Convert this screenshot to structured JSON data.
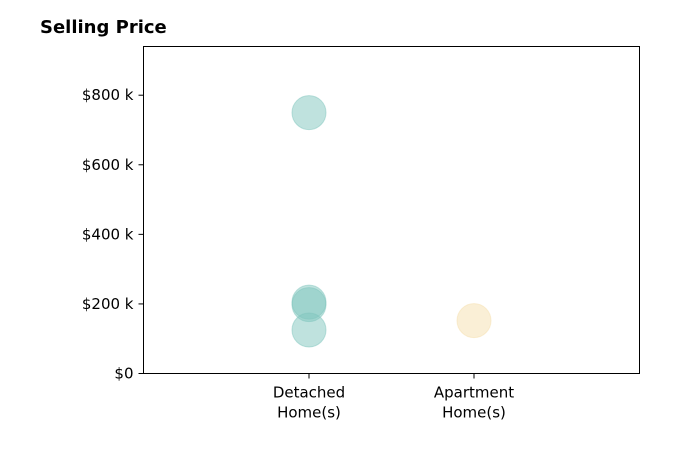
{
  "colors": {
    "detached": "#80c6bd",
    "apartment": "#f5dfae",
    "axis": "#000000",
    "background": "#ffffff"
  },
  "chart_data": {
    "type": "scatter",
    "title": "Selling Price",
    "xlabel": "",
    "ylabel": "",
    "categories": [
      [
        "Detached",
        "Home(s)"
      ],
      [
        "Apartment",
        "Home(s)"
      ]
    ],
    "y_ticks": [
      0,
      200000,
      400000,
      600000,
      800000
    ],
    "y_tick_labels": [
      "$0",
      "$200 k",
      "$400 k",
      "$600 k",
      "$800 k"
    ],
    "ylim": [
      0,
      940000
    ],
    "grid": false,
    "legend": "none",
    "points": [
      {
        "category": 0,
        "value": 750000
      },
      {
        "category": 0,
        "value": 205000
      },
      {
        "category": 0,
        "value": 198000
      },
      {
        "category": 0,
        "value": 125000
      },
      {
        "category": 1,
        "value": 152000
      }
    ],
    "point_alpha": 0.5
  }
}
